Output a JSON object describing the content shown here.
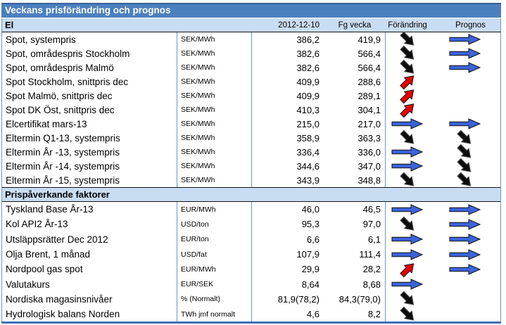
{
  "title": "Veckans prisförändring och prognos",
  "header": {
    "section_label": "El",
    "col_date": "2012-12-10",
    "col_prev_week": "Fg vecka",
    "col_change": "Förändring",
    "col_forecast": "Prognos"
  },
  "colors": {
    "title_bar": "#4b7fbe",
    "header_row": "#c9ddf2",
    "arrow_up": "#e60000",
    "arrow_down": "#0d0d0d",
    "arrow_right": "#3c63d9",
    "grid_line": "#6f94c4",
    "bottom_border": "#3e6fb8"
  },
  "arrow_legend": {
    "down": "arrow-down-right-icon",
    "up": "arrow-up-right-icon",
    "right": "arrow-right-icon"
  },
  "sections": [
    {
      "label": "",
      "rows": [
        {
          "name": "Spot, systempris",
          "unit": "SEK/MWh",
          "current": "386,2",
          "previous": "419,9",
          "change": "down",
          "forecast": "right"
        },
        {
          "name": "Spot, områdespris Stockholm",
          "unit": "SEK/MWh",
          "current": "382,6",
          "previous": "566,4",
          "change": "down",
          "forecast": "right"
        },
        {
          "name": "Spot, områdespris Malmö",
          "unit": "SEK/MWh",
          "current": "382,6",
          "previous": "566,4",
          "change": "down",
          "forecast": "right"
        },
        {
          "name": "Spot Stockholm, snittpris dec",
          "unit": "SEK/MWh",
          "current": "409,9",
          "previous": "288,6",
          "change": "up",
          "forecast": ""
        },
        {
          "name": "Spot Malmö, snittpris dec",
          "unit": "SEK/MWh",
          "current": "409,9",
          "previous": "289,1",
          "change": "up",
          "forecast": ""
        },
        {
          "name": "Spot DK Öst, snittpris dec",
          "unit": "SEK/MWh",
          "current": "410,3",
          "previous": "304,1",
          "change": "up",
          "forecast": ""
        },
        {
          "name": "Elcertifikat mars-13",
          "unit": "SEK/MWh",
          "current": "215,0",
          "previous": "217,0",
          "change": "right",
          "forecast": "right"
        },
        {
          "name": "Eltermin Q1-13, systempris",
          "unit": "SEK/MWh",
          "current": "358,9",
          "previous": "363,3",
          "change": "down",
          "forecast": "down"
        },
        {
          "name": "Eltermin År -13, systempris",
          "unit": "SEK/MWh",
          "current": "336,4",
          "previous": "336,0",
          "change": "right",
          "forecast": "down"
        },
        {
          "name": "Eltermin År -14, systempris",
          "unit": "SEK/MWh",
          "current": "344,6",
          "previous": "347,0",
          "change": "right",
          "forecast": "down"
        },
        {
          "name": "Eltermin År -15, systempris",
          "unit": "SEK/MWh",
          "current": "343,9",
          "previous": "348,8",
          "change": "down",
          "forecast": "down"
        }
      ]
    },
    {
      "label": "Prispåverkande faktorer",
      "rows": [
        {
          "name": "Tyskland Base År-13",
          "unit": "EUR/MWh",
          "current": "46,0",
          "previous": "46,5",
          "change": "right",
          "forecast": "right"
        },
        {
          "name": "Kol API2 År-13",
          "unit": "USD/ton",
          "current": "95,3",
          "previous": "97,0",
          "change": "down",
          "forecast": "right"
        },
        {
          "name": "Utsläppsrätter Dec 2012",
          "unit": "EUR/ton",
          "current": "6,6",
          "previous": "6,1",
          "change": "right",
          "forecast": "right"
        },
        {
          "name": "Olja Brent, 1 månad",
          "unit": "USD/fat",
          "current": "107,9",
          "previous": "111,4",
          "change": "right",
          "forecast": "right"
        },
        {
          "name": "Nordpool gas spot",
          "unit": "EUR/MWh",
          "current": "29,9",
          "previous": "28,2",
          "change": "up",
          "forecast": "right"
        },
        {
          "name": "Valutakurs",
          "unit": "EUR/SEK",
          "current": "8,64",
          "previous": "8,68",
          "change": "right",
          "forecast": ""
        },
        {
          "name": "Nordiska magasinsnivåer",
          "unit": "% (Normalt)",
          "current": "81,9(78,2)",
          "previous": "84,3(79,0)",
          "change": "down",
          "forecast": ""
        },
        {
          "name": "Hydrologisk balans Norden",
          "unit": "TWh jmf normalt",
          "current": "4,6",
          "previous": "8,2",
          "change": "down",
          "forecast": ""
        }
      ]
    }
  ]
}
